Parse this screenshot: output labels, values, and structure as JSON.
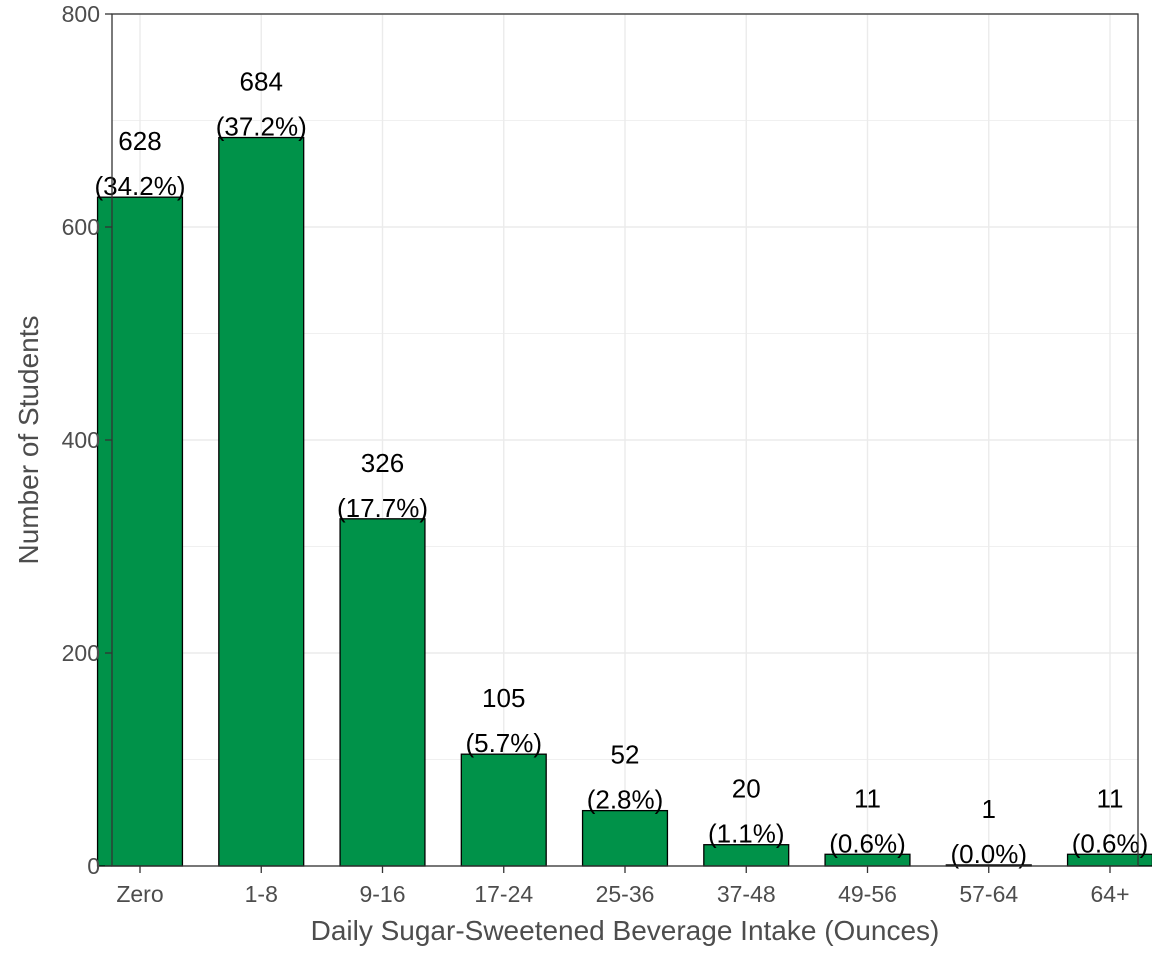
{
  "chart_data": {
    "type": "bar",
    "title": "",
    "xlabel": "Daily Sugar-Sweetened Beverage Intake (Ounces)",
    "ylabel": "Number of Students",
    "categories": [
      "Zero",
      "1-8",
      "9-16",
      "17-24",
      "25-36",
      "37-48",
      "49-56",
      "57-64",
      "64+"
    ],
    "values": [
      628,
      684,
      326,
      105,
      52,
      20,
      11,
      1,
      11
    ],
    "percent_labels": [
      "(34.2%)",
      "(37.2%)",
      "(17.7%)",
      "(5.7%)",
      "(2.8%)",
      "(1.1%)",
      "(0.6%)",
      "(0.0%)",
      "(0.6%)"
    ],
    "ylim": [
      0,
      800
    ],
    "yticks": [
      0,
      200,
      400,
      600,
      800
    ],
    "grid": true,
    "bar_color": "#009249",
    "bar_outline": "#000000",
    "grid_color": "#ebebeb"
  }
}
